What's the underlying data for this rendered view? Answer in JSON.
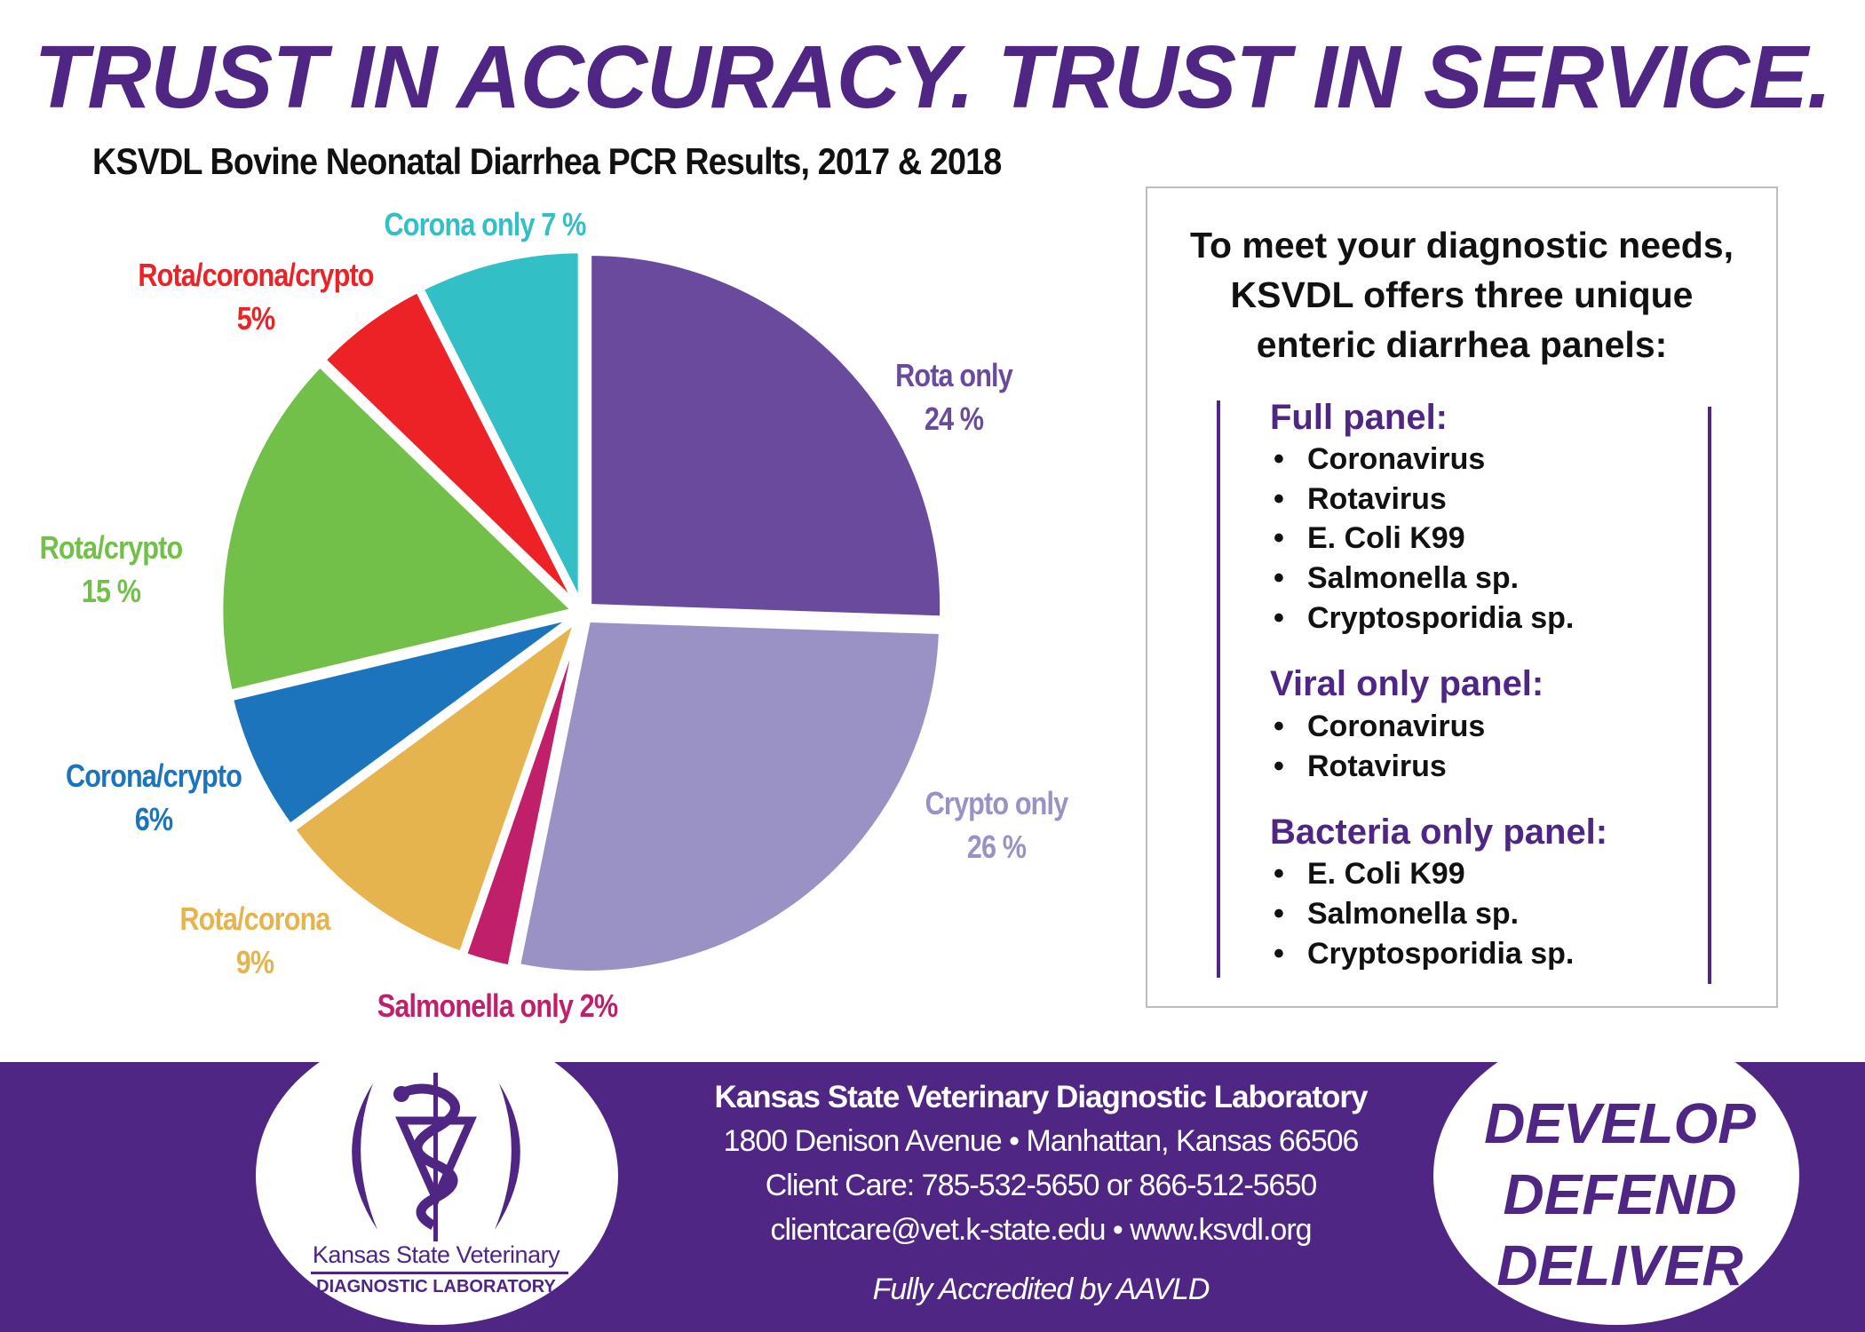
{
  "headline": "TRUST IN ACCURACY. TRUST IN SERVICE.",
  "chart_data": {
    "type": "pie",
    "title": "KSVDL Bovine Neonatal Diarrhea PCR Results, 2017 & 2018",
    "categories": [
      "Rota only",
      "Crypto only",
      "Salmonella only",
      "Rota/corona",
      "Corona/crypto",
      "Rota/crypto",
      "Rota/corona/crypto",
      "Corona only"
    ],
    "values": [
      24,
      26,
      2,
      9,
      6,
      15,
      5,
      7
    ],
    "unit": "%",
    "labels": [
      [
        "Rota only",
        "24 %"
      ],
      [
        "Crypto only",
        "26 %"
      ],
      [
        "Salmonella only 2%"
      ],
      [
        "Rota/corona",
        "9%"
      ],
      [
        "Corona/crypto",
        "6%"
      ],
      [
        "Rota/crypto",
        "15 %"
      ],
      [
        "Rota/corona/crypto",
        "5%"
      ],
      [
        "Corona only 7 %"
      ]
    ],
    "colors": [
      "#6a4a9c",
      "#9a91c5",
      "#c01f69",
      "#e6b44f",
      "#1c75bc",
      "#72bf4a",
      "#ec2227",
      "#33bfc6"
    ],
    "start": "12 o'clock, clockwise",
    "exploded": true
  },
  "panels_box": {
    "intro": [
      "To meet your diagnostic needs,",
      "KSVDL offers three unique",
      "enteric diarrhea panels:"
    ],
    "panels": [
      {
        "title": "Full panel:",
        "items": [
          "Coronavirus",
          "Rotavirus",
          "E. Coli K99",
          "Salmonella sp.",
          "Cryptosporidia sp."
        ]
      },
      {
        "title": "Viral only panel:",
        "items": [
          "Coronavirus",
          "Rotavirus"
        ]
      },
      {
        "title": "Bacteria only panel:",
        "items": [
          "E. Coli K99",
          "Salmonella sp.",
          "Cryptosporidia sp."
        ]
      }
    ]
  },
  "footer": {
    "logo_line1": "Kansas State Veterinary",
    "logo_line2": "DIAGNOSTIC LABORATORY",
    "org": "Kansas State Veterinary Diagnostic Laboratory",
    "address": "1800 Denison Avenue • Manhattan, Kansas 66506",
    "phone": "Client Care: 785-532-5650 or 866-512-5650",
    "contact": "clientcare@vet.k-state.edu • www.ksvdl.org",
    "accreditation": "Fully Accredited by AAVLD",
    "tagline": [
      "DEVELOP",
      "DEFEND",
      "DELIVER"
    ],
    "brand_color": "#4f2683"
  }
}
